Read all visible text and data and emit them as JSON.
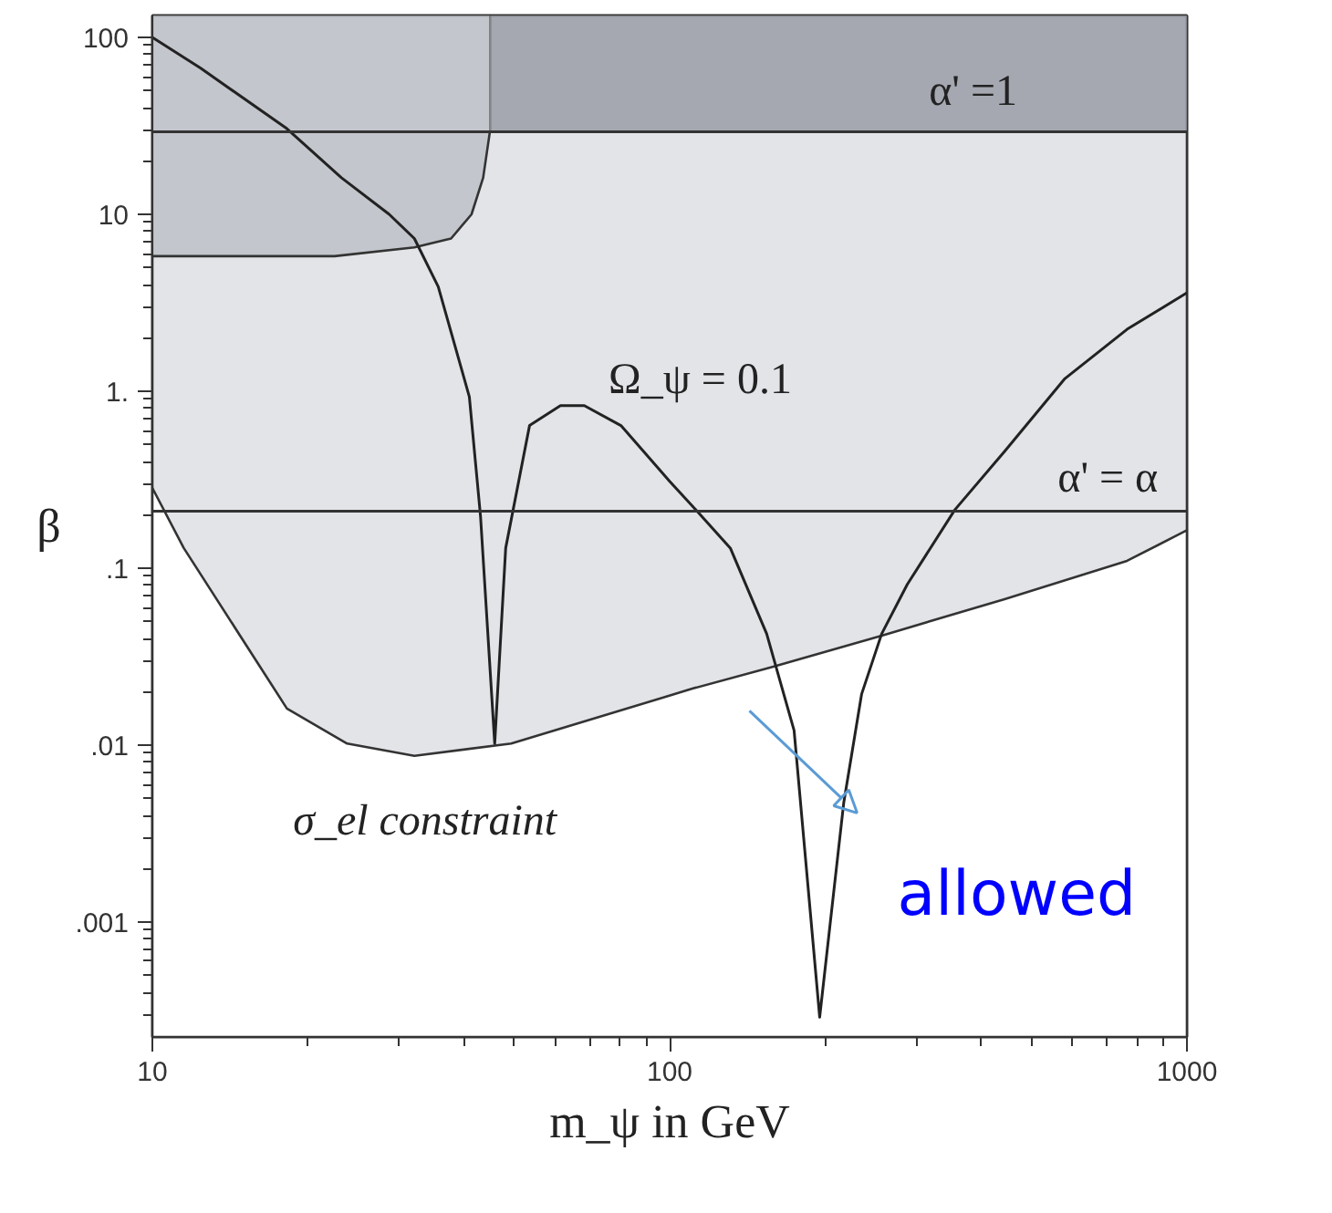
{
  "chart_data": {
    "type": "line",
    "xlabel": "m_ψ in GeV",
    "ylabel": "β",
    "log": "xy",
    "xlim": [
      10,
      1000
    ],
    "xticks": [
      10,
      100,
      1000
    ],
    "ylim": [
      0.000224,
      133
    ],
    "yticks": [
      {
        "value": 100,
        "label": "100"
      },
      {
        "value": 10,
        "label": "10"
      },
      {
        "value": 1,
        "label": "1."
      },
      {
        "value": 0.1,
        "label": ".1"
      },
      {
        "value": 0.01,
        "label": ".01"
      },
      {
        "value": 0.001,
        "label": ".001"
      }
    ],
    "bands": [
      {
        "axis": "x",
        "from": 10,
        "to": 45,
        "color": "#c3c6cc"
      },
      {
        "axis": "x",
        "from": 45,
        "to": 1000,
        "color": "#a5a8b0"
      }
    ],
    "series": [
      {
        "type": "area",
        "color": "#e3e4e8",
        "x": [
          10,
          22.5,
          32.1,
          37.8,
          41.4,
          43.6,
          44.9,
          45,
          1000
        ],
        "values": [
          5.8,
          5.8,
          6.5,
          7.3,
          10,
          16.1,
          29,
          29.3,
          29.3
        ]
      },
      {
        "type": "area",
        "color": "#ffffff",
        "x": [
          10,
          11.5,
          18.2,
          23.8,
          32.1,
          49.4,
          111,
          158,
          257,
          444,
          766,
          1000
        ],
        "values": [
          0.284,
          0.13,
          0.0161,
          0.0102,
          0.0087,
          0.0102,
          0.0209,
          0.0277,
          0.0416,
          0.0668,
          0.11,
          0.164
        ]
      },
      {
        "color": "#222222",
        "x": [
          10,
          12.4,
          18.2,
          23.2,
          28.7,
          32.1,
          35.7,
          41.0,
          43.1,
          45.9,
          48.2,
          53.6,
          61.5,
          68.4,
          80.5,
          100,
          113,
          131,
          154,
          174,
          195,
          217,
          235,
          257,
          288,
          356,
          444,
          581,
          766,
          1000
        ],
        "values": [
          100,
          67,
          30.5,
          16.1,
          10,
          7.3,
          3.9,
          0.93,
          0.195,
          0.0102,
          0.13,
          0.64,
          0.83,
          0.83,
          0.64,
          0.31,
          0.21,
          0.13,
          0.0426,
          0.0121,
          0.00029,
          0.0047,
          0.0194,
          0.0426,
          0.081,
          0.214,
          0.457,
          1.18,
          2.24,
          3.6
        ]
      }
    ],
    "ref_lines": [
      {
        "axis": "y",
        "value": 29.3
      },
      {
        "axis": "y",
        "value": 0.21
      }
    ],
    "annotations": [
      "Ω_ψ = 0.1",
      "σ_el constraint",
      "α' =1",
      "α' = α",
      "allowed"
    ]
  }
}
